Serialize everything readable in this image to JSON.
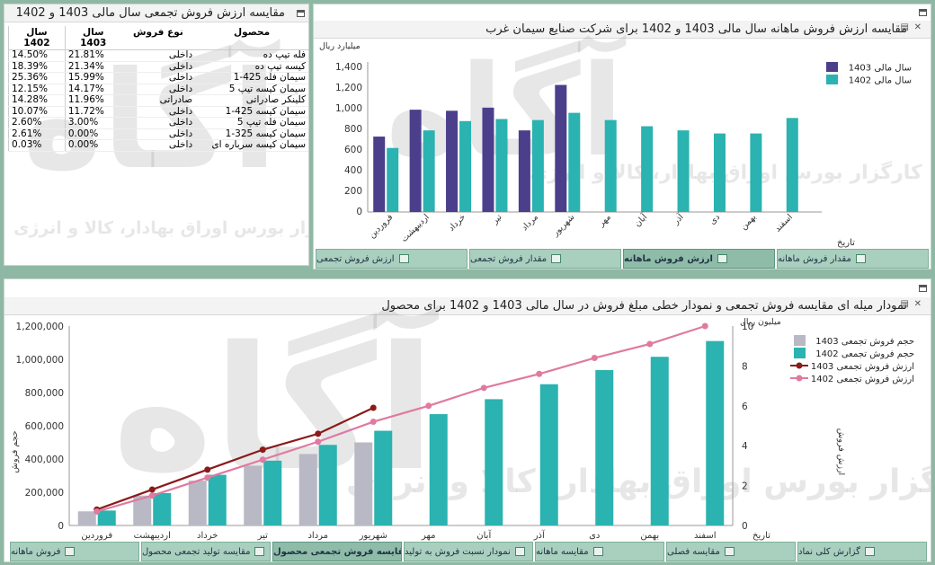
{
  "top_left_panel": {
    "title": "مقایسه ارزش فروش تجمعی سال مالی 1403 و 1402",
    "columns": {
      "product": "محصول",
      "sale_type": "نوع فروش",
      "y1403": "سال 1403",
      "y1402": "سال 1402"
    },
    "rows": [
      {
        "product": "فله تیپ ده",
        "type": "داخلی",
        "v1403": "21.81%",
        "v1402": "14.50%"
      },
      {
        "product": "کیسه تیپ ده",
        "type": "داخلی",
        "v1403": "21.34%",
        "v1402": "18.39%"
      },
      {
        "product": "سیمان فله 425-1",
        "type": "داخلی",
        "v1403": "15.99%",
        "v1402": "25.36%"
      },
      {
        "product": "سیمان کیسه تیپ 5",
        "type": "داخلی",
        "v1403": "14.17%",
        "v1402": "12.15%"
      },
      {
        "product": "کلینکر صادراتی",
        "type": "صادراتی",
        "v1403": "11.96%",
        "v1402": "14.28%"
      },
      {
        "product": "سیمان کیسه 425-1",
        "type": "داخلی",
        "v1403": "11.72%",
        "v1402": "10.07%"
      },
      {
        "product": "سیمان فله تیپ 5",
        "type": "داخلی",
        "v1403": "3.00%",
        "v1402": "2.60%"
      },
      {
        "product": "سیمان کیسه 325-1",
        "type": "داخلی",
        "v1403": "0.00%",
        "v1402": "2.61%"
      },
      {
        "product": "سیمان کیسه سرباره ای",
        "type": "داخلی",
        "v1403": "0.00%",
        "v1402": "0.03%"
      }
    ]
  },
  "top_right_panel": {
    "title": "مقایسه ارزش فروش ماهانه سال مالی 1403 و 1402 برای شرکت صنایع سیمان غرب",
    "tabs": [
      {
        "label": "مقدار فروش ماهانه",
        "active": false
      },
      {
        "label": "ارزش فروش ماهانه",
        "active": true
      },
      {
        "label": "مقدار فروش تجمعی",
        "active": false
      },
      {
        "label": "ارزش فروش تجمعی",
        "active": false
      }
    ]
  },
  "bottom_panel": {
    "title": "نمودار میله ای مقایسه فروش تجمعی و نمودار خطی مبلغ فروش در سال مالی 1403 و 1402 برای محصول",
    "tabs": [
      {
        "label": "گزارش کلی نماد",
        "active": false
      },
      {
        "label": "مقایسه فصلی",
        "active": false
      },
      {
        "label": "مقایسه ماهانه",
        "active": false
      },
      {
        "label": "نمودار نسبت فروش به تولید",
        "active": false
      },
      {
        "label": "مقایسه فروش تجمعی محصول",
        "active": true
      },
      {
        "label": "مقایسه تولید تجمعی محصول",
        "active": false
      },
      {
        "label": "فروش ماهانه",
        "active": false
      }
    ]
  },
  "watermark": {
    "text": "کارگزار بورس اوراق بهادار، کالا و انرژی"
  },
  "colors": {
    "s1403": "#4b3f8c",
    "s1402": "#2ab3b0",
    "bar1403": "#b9b9c6",
    "line1403": "#8b1a1a",
    "line1402": "#e07aa0"
  },
  "chart_data": [
    {
      "type": "bar",
      "ylabel": "میلیارد ریال",
      "xlabel": "تاریخ",
      "ylim": [
        0,
        1400
      ],
      "yticks": [
        "0",
        "200",
        "400",
        "600",
        "800",
        "1,000",
        "1,200",
        "1,400"
      ],
      "grid": false,
      "legend": "top-right",
      "categories": [
        "فروردین",
        "اردیبهشت",
        "خرداد",
        "تیر",
        "مرداد",
        "شهریور",
        "مهر",
        "آبان",
        "آذر",
        "دی",
        "بهمن",
        "اسفند"
      ],
      "series": [
        {
          "name": "سال مالی 1403",
          "values": [
            730,
            990,
            980,
            1010,
            790,
            1230,
            null,
            null,
            null,
            null,
            null,
            null
          ]
        },
        {
          "name": "سال مالی 1402",
          "values": [
            620,
            790,
            880,
            900,
            890,
            960,
            890,
            830,
            790,
            760,
            760,
            910
          ]
        }
      ]
    },
    {
      "type": "bar",
      "ylabel": "حجم فروش",
      "y2label": "ارزش فروش",
      "y2unit": "میلیون ریال",
      "xlabel": "تاریخ",
      "ylim": [
        0,
        1200000
      ],
      "y2lim": [
        0,
        10
      ],
      "yticks": [
        "0",
        "200,000",
        "400,000",
        "600,000",
        "800,000",
        "1,000,000",
        "1,200,000"
      ],
      "y2ticks": [
        "0",
        "2",
        "4",
        "6",
        "8",
        "10"
      ],
      "grid": false,
      "legend": "top-right",
      "categories": [
        "فروردین",
        "اردیبهشت",
        "خرداد",
        "تیر",
        "مرداد",
        "شهریور",
        "مهر",
        "آبان",
        "آذر",
        "دی",
        "بهمن",
        "اسفند"
      ],
      "series": [
        {
          "name": "حجم فروش تجمعی 1403",
          "kind": "bar",
          "axis": "left",
          "values": [
            85000,
            180000,
            270000,
            360000,
            430000,
            500000,
            null,
            null,
            null,
            null,
            null,
            null
          ]
        },
        {
          "name": "حجم فروش تجمعی 1402",
          "kind": "bar",
          "axis": "left",
          "values": [
            90000,
            195000,
            305000,
            390000,
            485000,
            570000,
            670000,
            760000,
            850000,
            935000,
            1015000,
            1110000
          ]
        },
        {
          "name": "ارزش فروش تجمعی 1403",
          "kind": "line",
          "axis": "right",
          "values": [
            0.8,
            1.8,
            2.8,
            3.8,
            4.6,
            5.9,
            null,
            null,
            null,
            null,
            null,
            null
          ]
        },
        {
          "name": "ارزش فروش تجمعی 1402",
          "kind": "line",
          "axis": "right",
          "values": [
            0.7,
            1.5,
            2.4,
            3.3,
            4.2,
            5.2,
            6.0,
            6.9,
            7.6,
            8.4,
            9.1,
            10.0
          ]
        }
      ]
    }
  ]
}
